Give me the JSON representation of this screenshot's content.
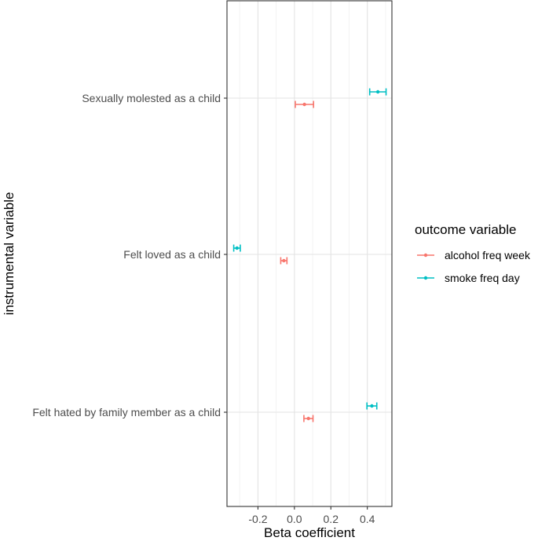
{
  "chart_data": {
    "type": "errorbar",
    "xlabel": "Beta coefficient",
    "ylabel": "instrumental variable",
    "xlim": [
      -0.37,
      0.535
    ],
    "x_ticks": [
      -0.2,
      0.0,
      0.2,
      0.4
    ],
    "x_tick_labels": [
      "-0.2",
      "0.0",
      "0.2",
      "0.4"
    ],
    "categories": [
      "Sexually molested as a child",
      "Felt loved as a child",
      "Felt hated by family member as a child"
    ],
    "grid": true,
    "legend": {
      "title": "outcome variable",
      "position": "right"
    },
    "series": [
      {
        "name": "alcohol freq week",
        "color": "#F8766D",
        "points": [
          {
            "category": "Sexually molested as a child",
            "estimate": 0.055,
            "lower": 0.005,
            "upper": 0.105
          },
          {
            "category": "Felt loved as a child",
            "estimate": -0.058,
            "lower": -0.075,
            "upper": -0.041
          },
          {
            "category": "Felt hated by family member as a child",
            "estimate": 0.077,
            "lower": 0.052,
            "upper": 0.102
          }
        ]
      },
      {
        "name": "smoke freq day",
        "color": "#00BFC4",
        "points": [
          {
            "category": "Sexually molested as a child",
            "estimate": 0.458,
            "lower": 0.413,
            "upper": 0.503
          },
          {
            "category": "Felt loved as a child",
            "estimate": -0.315,
            "lower": -0.333,
            "upper": -0.297
          },
          {
            "category": "Felt hated by family member as a child",
            "estimate": 0.425,
            "lower": 0.398,
            "upper": 0.452
          }
        ]
      }
    ]
  }
}
